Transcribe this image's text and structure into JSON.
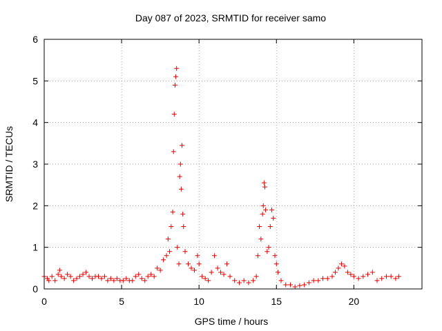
{
  "chart_data": {
    "type": "scatter",
    "title": "Day 087 of 2023, SRMTID for receiver samo",
    "xlabel": "GPS time / hours",
    "ylabel": "SRMTID / TECUs",
    "xlim": [
      0,
      24.4
    ],
    "ylim": [
      0,
      6
    ],
    "xticks": [
      0,
      5,
      10,
      15,
      20
    ],
    "yticks": [
      0,
      1,
      2,
      3,
      4,
      5,
      6
    ],
    "grid": true,
    "marker": "plus",
    "series": [
      {
        "name": "SRMTID",
        "color": "#e00000",
        "points": [
          [
            0.0,
            0.3
          ],
          [
            0.2,
            0.25
          ],
          [
            0.3,
            0.2
          ],
          [
            0.5,
            0.3
          ],
          [
            0.7,
            0.2
          ],
          [
            0.9,
            0.35
          ],
          [
            1.0,
            0.45
          ],
          [
            1.1,
            0.3
          ],
          [
            1.3,
            0.25
          ],
          [
            1.5,
            0.35
          ],
          [
            1.7,
            0.3
          ],
          [
            1.9,
            0.2
          ],
          [
            2.1,
            0.25
          ],
          [
            2.3,
            0.3
          ],
          [
            2.5,
            0.35
          ],
          [
            2.7,
            0.4
          ],
          [
            2.9,
            0.3
          ],
          [
            3.1,
            0.25
          ],
          [
            3.3,
            0.3
          ],
          [
            3.5,
            0.3
          ],
          [
            3.7,
            0.25
          ],
          [
            3.9,
            0.3
          ],
          [
            4.1,
            0.2
          ],
          [
            4.3,
            0.25
          ],
          [
            4.5,
            0.2
          ],
          [
            4.7,
            0.25
          ],
          [
            4.9,
            0.2
          ],
          [
            5.1,
            0.2
          ],
          [
            5.3,
            0.25
          ],
          [
            5.5,
            0.2
          ],
          [
            5.7,
            0.2
          ],
          [
            5.9,
            0.3
          ],
          [
            6.1,
            0.35
          ],
          [
            6.3,
            0.25
          ],
          [
            6.5,
            0.2
          ],
          [
            6.7,
            0.3
          ],
          [
            6.9,
            0.35
          ],
          [
            7.1,
            0.3
          ],
          [
            7.3,
            0.5
          ],
          [
            7.5,
            0.45
          ],
          [
            7.7,
            0.7
          ],
          [
            7.9,
            0.8
          ],
          [
            8.0,
            1.2
          ],
          [
            8.1,
            0.9
          ],
          [
            8.2,
            1.5
          ],
          [
            8.3,
            1.85
          ],
          [
            8.35,
            3.3
          ],
          [
            8.4,
            4.2
          ],
          [
            8.45,
            4.9
          ],
          [
            8.5,
            5.1
          ],
          [
            8.55,
            5.3
          ],
          [
            8.6,
            1.0
          ],
          [
            8.7,
            0.6
          ],
          [
            8.75,
            2.7
          ],
          [
            8.8,
            3.0
          ],
          [
            8.85,
            2.4
          ],
          [
            8.9,
            3.45
          ],
          [
            8.95,
            1.8
          ],
          [
            9.0,
            1.5
          ],
          [
            9.1,
            0.9
          ],
          [
            9.3,
            0.6
          ],
          [
            9.5,
            0.5
          ],
          [
            9.7,
            0.45
          ],
          [
            9.9,
            0.8
          ],
          [
            10.0,
            0.6
          ],
          [
            10.2,
            0.3
          ],
          [
            10.4,
            0.25
          ],
          [
            10.6,
            0.2
          ],
          [
            10.8,
            0.4
          ],
          [
            11.0,
            0.8
          ],
          [
            11.2,
            0.5
          ],
          [
            11.4,
            0.4
          ],
          [
            11.6,
            0.35
          ],
          [
            11.8,
            0.6
          ],
          [
            12.0,
            0.3
          ],
          [
            12.3,
            0.2
          ],
          [
            12.6,
            0.15
          ],
          [
            12.9,
            0.2
          ],
          [
            13.2,
            0.15
          ],
          [
            13.5,
            0.2
          ],
          [
            13.7,
            0.3
          ],
          [
            13.8,
            0.8
          ],
          [
            13.9,
            1.5
          ],
          [
            14.0,
            1.2
          ],
          [
            14.1,
            1.8
          ],
          [
            14.15,
            2.0
          ],
          [
            14.2,
            2.55
          ],
          [
            14.25,
            2.45
          ],
          [
            14.3,
            1.9
          ],
          [
            14.4,
            0.9
          ],
          [
            14.5,
            1.0
          ],
          [
            14.6,
            1.5
          ],
          [
            14.7,
            1.9
          ],
          [
            14.8,
            1.7
          ],
          [
            14.9,
            0.8
          ],
          [
            15.0,
            0.6
          ],
          [
            15.1,
            0.4
          ],
          [
            15.3,
            0.2
          ],
          [
            15.6,
            0.1
          ],
          [
            15.9,
            0.1
          ],
          [
            16.2,
            0.05
          ],
          [
            16.5,
            0.08
          ],
          [
            16.8,
            0.1
          ],
          [
            17.1,
            0.15
          ],
          [
            17.4,
            0.2
          ],
          [
            17.7,
            0.2
          ],
          [
            18.0,
            0.25
          ],
          [
            18.3,
            0.25
          ],
          [
            18.6,
            0.3
          ],
          [
            18.8,
            0.4
          ],
          [
            19.0,
            0.5
          ],
          [
            19.2,
            0.6
          ],
          [
            19.4,
            0.55
          ],
          [
            19.6,
            0.4
          ],
          [
            19.8,
            0.35
          ],
          [
            20.0,
            0.3
          ],
          [
            20.3,
            0.25
          ],
          [
            20.6,
            0.3
          ],
          [
            20.9,
            0.35
          ],
          [
            21.2,
            0.4
          ],
          [
            21.5,
            0.2
          ],
          [
            21.8,
            0.25
          ],
          [
            22.1,
            0.3
          ],
          [
            22.4,
            0.3
          ],
          [
            22.7,
            0.25
          ],
          [
            22.9,
            0.3
          ]
        ]
      }
    ]
  }
}
